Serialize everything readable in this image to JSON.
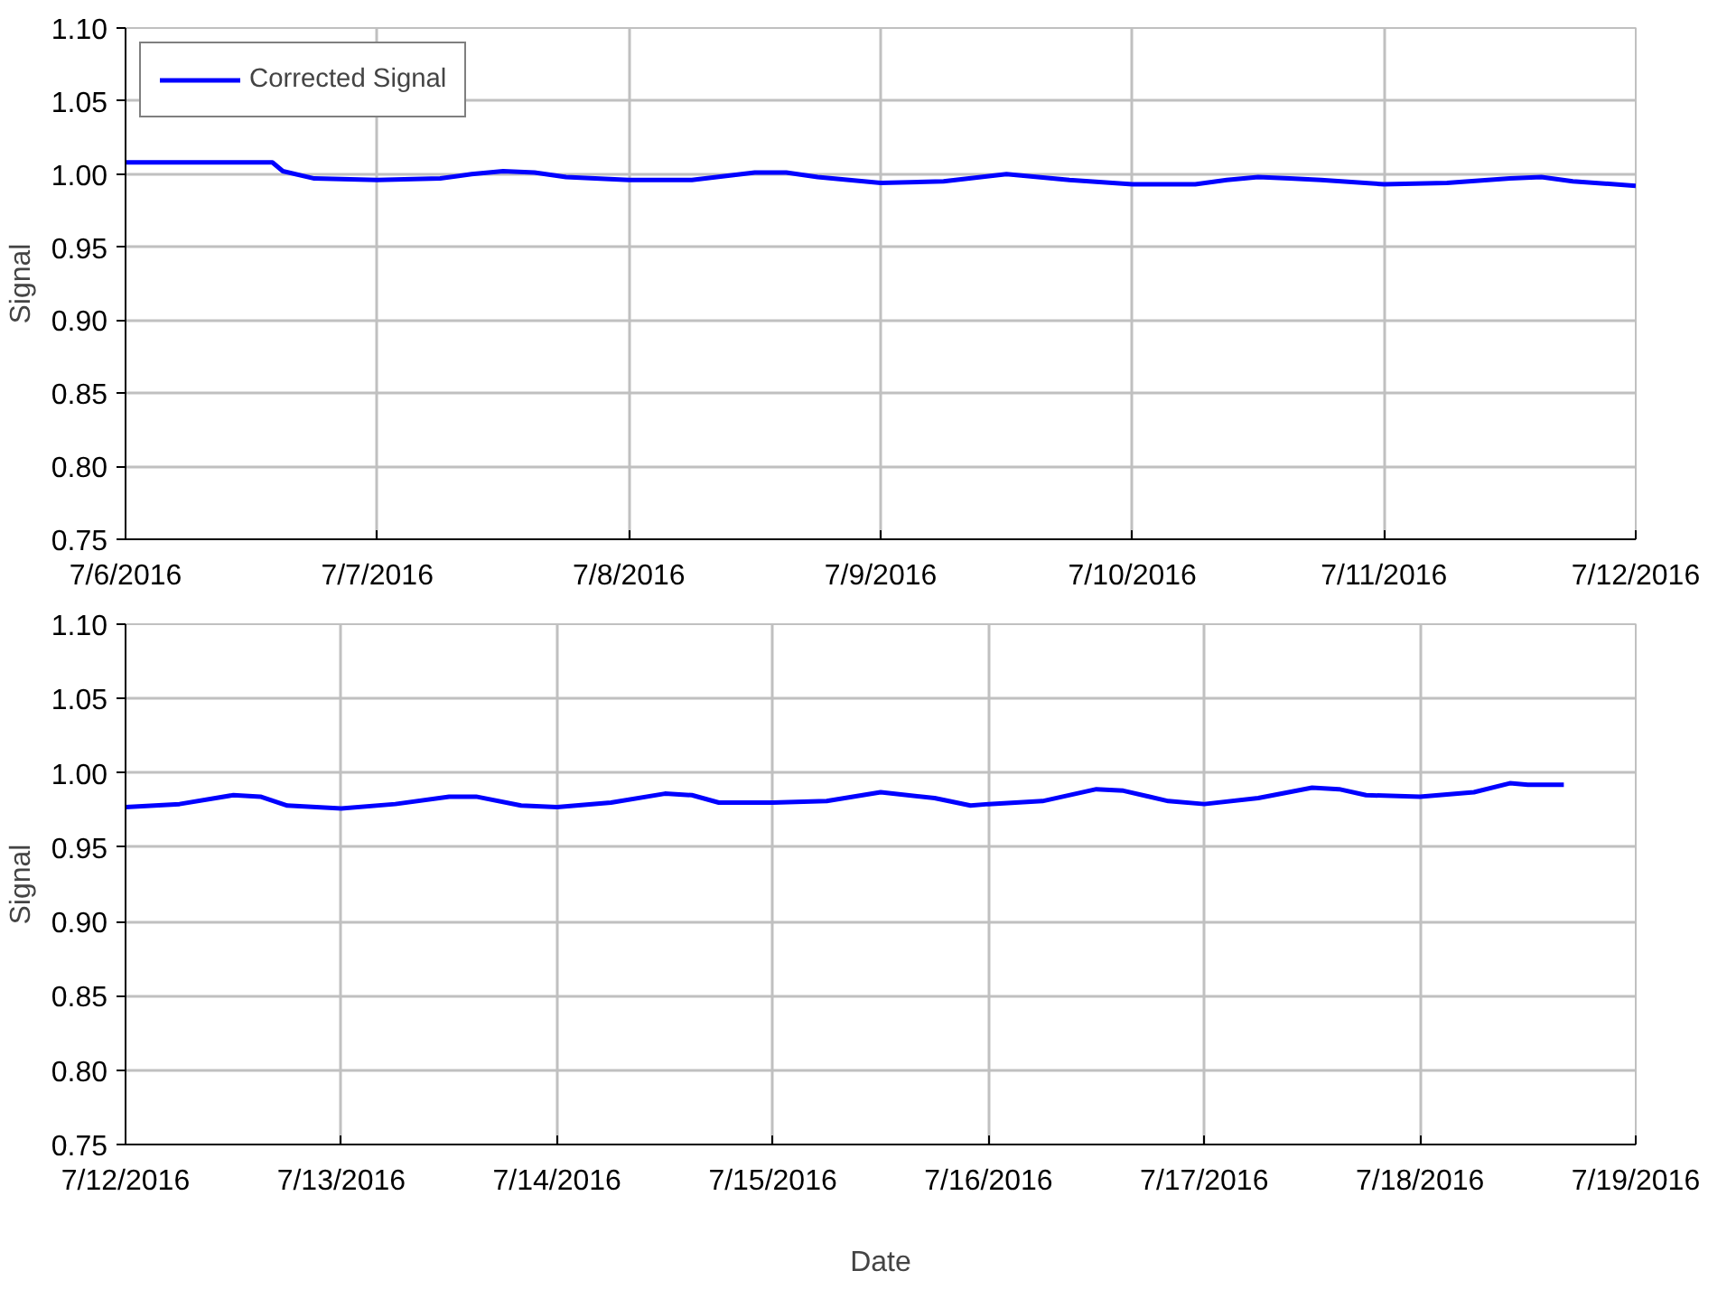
{
  "chart_data": [
    {
      "type": "line",
      "ylabel": "Signal",
      "grid": true,
      "legend": "top left",
      "line_style": "solid",
      "xlim": [
        "2016-07-06",
        "2016-07-12"
      ],
      "xticks": [
        {
          "value": "2016-07-06",
          "label": "7/6/2016"
        },
        {
          "value": "2016-07-07",
          "label": "7/7/2016"
        },
        {
          "value": "2016-07-08",
          "label": "7/8/2016"
        },
        {
          "value": "2016-07-09",
          "label": "7/9/2016"
        },
        {
          "value": "2016-07-10",
          "label": "7/10/2016"
        },
        {
          "value": "2016-07-11",
          "label": "7/11/2016"
        },
        {
          "value": "2016-07-12",
          "label": "7/12/2016"
        }
      ],
      "ylim": [
        0.75,
        1.1
      ],
      "yticks": [
        {
          "value": 0.75,
          "label": "0.75"
        },
        {
          "value": 0.8,
          "label": "0.80"
        },
        {
          "value": 0.85,
          "label": "0.85"
        },
        {
          "value": 0.9,
          "label": "0.90"
        },
        {
          "value": 0.95,
          "label": "0.95"
        },
        {
          "value": 1.0,
          "label": "1.00"
        },
        {
          "value": 1.05,
          "label": "1.05"
        },
        {
          "value": 1.1,
          "label": "1.10"
        }
      ],
      "series": [
        {
          "name": "Corrected Signal",
          "color": "#0000ff",
          "x": [
            "2016-07-06T00:00",
            "2016-07-06T12:00",
            "2016-07-06T14:00",
            "2016-07-06T15:00",
            "2016-07-06T18:00",
            "2016-07-07T00:00",
            "2016-07-07T06:00",
            "2016-07-07T09:00",
            "2016-07-07T12:00",
            "2016-07-07T15:00",
            "2016-07-07T18:00",
            "2016-07-08T00:00",
            "2016-07-08T06:00",
            "2016-07-08T12:00",
            "2016-07-08T15:00",
            "2016-07-08T18:00",
            "2016-07-09T00:00",
            "2016-07-09T06:00",
            "2016-07-09T12:00",
            "2016-07-09T18:00",
            "2016-07-10T00:00",
            "2016-07-10T06:00",
            "2016-07-10T09:00",
            "2016-07-10T12:00",
            "2016-07-10T15:00",
            "2016-07-10T18:00",
            "2016-07-11T00:00",
            "2016-07-11T06:00",
            "2016-07-11T12:00",
            "2016-07-11T15:00",
            "2016-07-11T18:00",
            "2016-07-12T00:00"
          ],
          "values": [
            1.008,
            1.008,
            1.008,
            1.002,
            0.997,
            0.996,
            0.997,
            1.0,
            1.002,
            1.001,
            0.998,
            0.996,
            0.996,
            1.001,
            1.001,
            0.998,
            0.994,
            0.995,
            1.0,
            0.996,
            0.993,
            0.993,
            0.996,
            0.998,
            0.997,
            0.996,
            0.993,
            0.994,
            0.997,
            0.998,
            0.995,
            0.992
          ]
        }
      ]
    },
    {
      "type": "line",
      "xlabel": "Date",
      "ylabel": "Signal",
      "grid": true,
      "line_style": "solid",
      "xlim": [
        "2016-07-12",
        "2016-07-19"
      ],
      "xticks": [
        {
          "value": "2016-07-12",
          "label": "7/12/2016"
        },
        {
          "value": "2016-07-13",
          "label": "7/13/2016"
        },
        {
          "value": "2016-07-14",
          "label": "7/14/2016"
        },
        {
          "value": "2016-07-15",
          "label": "7/15/2016"
        },
        {
          "value": "2016-07-16",
          "label": "7/16/2016"
        },
        {
          "value": "2016-07-17",
          "label": "7/17/2016"
        },
        {
          "value": "2016-07-18",
          "label": "7/18/2016"
        },
        {
          "value": "2016-07-19",
          "label": "7/19/2016"
        }
      ],
      "ylim": [
        0.75,
        1.1
      ],
      "yticks": [
        {
          "value": 0.75,
          "label": "0.75"
        },
        {
          "value": 0.8,
          "label": "0.80"
        },
        {
          "value": 0.85,
          "label": "0.85"
        },
        {
          "value": 0.9,
          "label": "0.90"
        },
        {
          "value": 0.95,
          "label": "0.95"
        },
        {
          "value": 1.0,
          "label": "1.00"
        },
        {
          "value": 1.05,
          "label": "1.05"
        },
        {
          "value": 1.1,
          "label": "1.10"
        }
      ],
      "series": [
        {
          "color": "#0000ff",
          "x": [
            "2016-07-12T00:00",
            "2016-07-12T06:00",
            "2016-07-12T12:00",
            "2016-07-12T15:00",
            "2016-07-12T18:00",
            "2016-07-13T00:00",
            "2016-07-13T06:00",
            "2016-07-13T12:00",
            "2016-07-13T15:00",
            "2016-07-13T20:00",
            "2016-07-14T00:00",
            "2016-07-14T06:00",
            "2016-07-14T12:00",
            "2016-07-14T15:00",
            "2016-07-14T18:00",
            "2016-07-15T00:00",
            "2016-07-15T06:00",
            "2016-07-15T12:00",
            "2016-07-15T18:00",
            "2016-07-15T22:00",
            "2016-07-16T00:00",
            "2016-07-16T06:00",
            "2016-07-16T12:00",
            "2016-07-16T15:00",
            "2016-07-16T20:00",
            "2016-07-17T00:00",
            "2016-07-17T06:00",
            "2016-07-17T12:00",
            "2016-07-17T15:00",
            "2016-07-17T18:00",
            "2016-07-18T00:00",
            "2016-07-18T06:00",
            "2016-07-18T10:00",
            "2016-07-18T12:00",
            "2016-07-18T16:00"
          ],
          "values": [
            0.977,
            0.979,
            0.985,
            0.984,
            0.978,
            0.976,
            0.979,
            0.984,
            0.984,
            0.978,
            0.977,
            0.98,
            0.986,
            0.985,
            0.98,
            0.98,
            0.981,
            0.987,
            0.983,
            0.978,
            0.979,
            0.981,
            0.989,
            0.988,
            0.981,
            0.979,
            0.983,
            0.99,
            0.989,
            0.985,
            0.984,
            0.987,
            0.993,
            0.992,
            0.992
          ]
        }
      ]
    }
  ]
}
